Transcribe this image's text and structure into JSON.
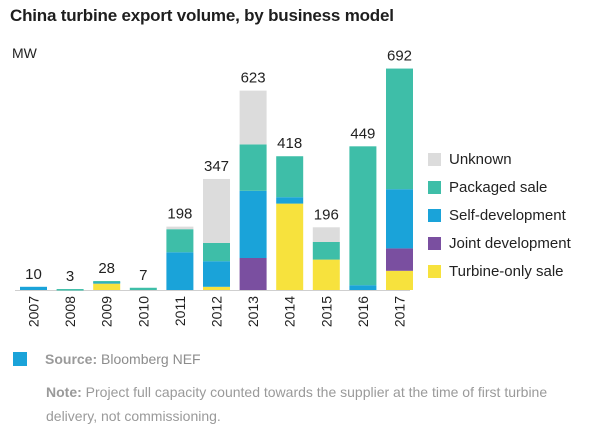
{
  "chart_data": {
    "type": "bar",
    "stacked": true,
    "title": "China turbine export volume, by business model",
    "ylabel": "MW",
    "xlabel": "",
    "ylim": [
      0,
      700
    ],
    "categories": [
      "2007",
      "2008",
      "2009",
      "2010",
      "2011",
      "2012",
      "2013",
      "2014",
      "2015",
      "2016",
      "2017"
    ],
    "totals": [
      10,
      3,
      28,
      7,
      198,
      347,
      623,
      418,
      196,
      449,
      692
    ],
    "series": [
      {
        "name": "Turbine-only sale",
        "color": "#f7e23d",
        "values": [
          0,
          0,
          20,
          0,
          0,
          10,
          0,
          270,
          95,
          0,
          60
        ]
      },
      {
        "name": "Joint development",
        "color": "#7a4fa0",
        "values": [
          0,
          0,
          0,
          0,
          0,
          0,
          100,
          0,
          0,
          0,
          70
        ]
      },
      {
        "name": "Self-development",
        "color": "#1aa3d9",
        "values": [
          10,
          0,
          5,
          0,
          118,
          80,
          210,
          20,
          0,
          15,
          185
        ]
      },
      {
        "name": "Packaged sale",
        "color": "#3ebea8",
        "values": [
          0,
          3,
          3,
          7,
          72,
          57,
          145,
          128,
          55,
          434,
          377
        ]
      },
      {
        "name": "Unknown",
        "color": "#dcdcdc",
        "values": [
          0,
          0,
          0,
          0,
          8,
          200,
          168,
          0,
          46,
          0,
          0
        ]
      }
    ],
    "legend": [
      "Unknown",
      "Packaged sale",
      "Self-development",
      "Joint development",
      "Turbine-only sale"
    ]
  },
  "source": {
    "label": "Source:",
    "text": "Bloomberg NEF"
  },
  "note": {
    "label": "Note:",
    "text": "Project full capacity counted towards the supplier at the time of first turbine delivery, not commissioning."
  },
  "colors": {
    "accent": "#1aa3d9"
  }
}
